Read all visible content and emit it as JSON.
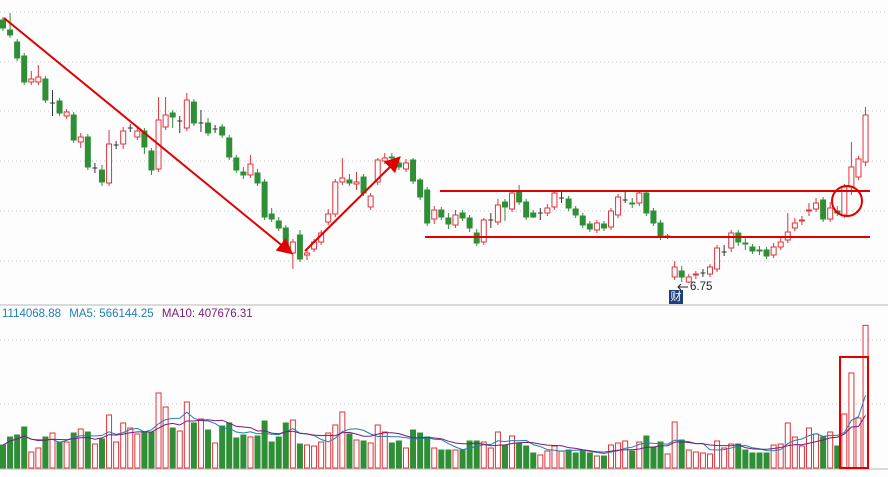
{
  "volume_header": {
    "volume": "1114068.88",
    "ma5": "MA5: 566144.25",
    "ma10": "MA10: 407676.31"
  },
  "low_marker": {
    "label": "6.75",
    "badge": "财"
  },
  "colors": {
    "up": "#e0343c",
    "down": "#2f8f36",
    "doji": "#333333",
    "ma5": "#1f7fb4",
    "ma10": "#7a1a7a",
    "annotation": "#e00000",
    "grid": "#c8c8c8"
  },
  "chart_data": {
    "type": "candlestick",
    "grid": true,
    "candles_ohlc": [
      [
        9.38,
        9.41,
        9.27,
        9.3
      ],
      [
        9.28,
        9.45,
        9.2,
        9.23
      ],
      [
        9.16,
        9.19,
        8.97,
        9.0
      ],
      [
        9.02,
        9.05,
        8.73,
        8.76
      ],
      [
        8.76,
        8.87,
        8.73,
        8.79
      ],
      [
        8.76,
        8.93,
        8.73,
        8.81
      ],
      [
        8.79,
        8.82,
        8.55,
        8.58
      ],
      [
        8.55,
        8.68,
        8.42,
        8.55
      ],
      [
        8.57,
        8.6,
        8.42,
        8.45
      ],
      [
        8.42,
        8.49,
        8.39,
        8.46
      ],
      [
        8.43,
        8.46,
        8.15,
        8.18
      ],
      [
        8.16,
        8.25,
        8.1,
        8.21
      ],
      [
        8.21,
        8.24,
        7.88,
        7.91
      ],
      [
        7.9,
        7.95,
        7.85,
        7.9
      ],
      [
        7.88,
        7.93,
        7.72,
        7.76
      ],
      [
        7.75,
        8.28,
        7.72,
        8.14
      ],
      [
        8.13,
        8.17,
        8.09,
        8.13
      ],
      [
        8.14,
        8.31,
        8.09,
        8.27
      ],
      [
        8.3,
        8.34,
        8.26,
        8.3
      ],
      [
        8.21,
        8.32,
        8.18,
        8.27
      ],
      [
        8.27,
        8.3,
        8.04,
        8.11
      ],
      [
        8.07,
        8.1,
        7.83,
        7.88
      ],
      [
        7.89,
        8.61,
        7.86,
        8.38
      ],
      [
        8.31,
        8.61,
        8.28,
        8.43
      ],
      [
        8.45,
        8.48,
        8.3,
        8.41
      ],
      [
        8.37,
        8.42,
        8.25,
        8.37
      ],
      [
        8.3,
        8.65,
        8.27,
        8.58
      ],
      [
        8.56,
        8.59,
        8.32,
        8.35
      ],
      [
        8.35,
        8.48,
        8.26,
        8.35
      ],
      [
        8.35,
        8.4,
        8.22,
        8.25
      ],
      [
        8.29,
        8.33,
        8.25,
        8.29
      ],
      [
        8.31,
        8.34,
        8.2,
        8.23
      ],
      [
        8.2,
        8.23,
        7.98,
        8.01
      ],
      [
        8.0,
        8.03,
        7.85,
        7.88
      ],
      [
        7.86,
        7.91,
        7.79,
        7.83
      ],
      [
        7.83,
        8.03,
        7.8,
        7.94
      ],
      [
        7.85,
        7.89,
        7.72,
        7.75
      ],
      [
        7.76,
        7.79,
        7.38,
        7.41
      ],
      [
        7.44,
        7.5,
        7.36,
        7.39
      ],
      [
        7.37,
        7.41,
        7.27,
        7.3
      ],
      [
        7.3,
        7.33,
        7.08,
        7.11
      ],
      [
        7.05,
        7.19,
        6.89,
        7.16
      ],
      [
        7.23,
        7.28,
        6.96,
        6.99
      ],
      [
        7.03,
        7.08,
        6.98,
        7.05
      ],
      [
        7.09,
        7.19,
        7.06,
        7.16
      ],
      [
        7.16,
        7.28,
        7.13,
        7.25
      ],
      [
        7.36,
        7.49,
        7.33,
        7.44
      ],
      [
        7.44,
        7.79,
        7.41,
        7.76
      ],
      [
        7.76,
        8.0,
        7.73,
        7.8
      ],
      [
        7.78,
        7.84,
        7.72,
        7.75
      ],
      [
        7.74,
        7.86,
        7.68,
        7.76
      ],
      [
        7.81,
        7.84,
        7.62,
        7.65
      ],
      [
        7.51,
        7.65,
        7.48,
        7.62
      ],
      [
        7.76,
        8.0,
        7.73,
        7.98
      ],
      [
        7.97,
        8.05,
        7.94,
        8.0
      ],
      [
        8.01,
        8.05,
        7.97,
        8.0
      ],
      [
        7.95,
        7.99,
        7.88,
        7.91
      ],
      [
        7.89,
        7.99,
        7.86,
        7.95
      ],
      [
        7.98,
        8.0,
        7.74,
        7.77
      ],
      [
        7.78,
        7.8,
        7.58,
        7.61
      ],
      [
        7.68,
        7.71,
        7.32,
        7.35
      ],
      [
        7.39,
        7.52,
        7.34,
        7.48
      ],
      [
        7.48,
        7.51,
        7.38,
        7.41
      ],
      [
        7.4,
        7.45,
        7.29,
        7.34
      ],
      [
        7.33,
        7.48,
        7.3,
        7.43
      ],
      [
        7.45,
        7.48,
        7.37,
        7.4
      ],
      [
        7.4,
        7.43,
        7.26,
        7.3
      ],
      [
        7.25,
        7.29,
        7.12,
        7.15
      ],
      [
        7.16,
        7.4,
        7.13,
        7.38
      ],
      [
        7.38,
        7.45,
        7.3,
        7.38
      ],
      [
        7.36,
        7.59,
        7.33,
        7.53
      ],
      [
        7.56,
        7.59,
        7.37,
        7.51
      ],
      [
        7.49,
        7.68,
        7.46,
        7.65
      ],
      [
        7.66,
        7.73,
        7.53,
        7.56
      ],
      [
        7.56,
        7.59,
        7.38,
        7.41
      ],
      [
        7.45,
        7.48,
        7.4,
        7.41
      ],
      [
        7.45,
        7.5,
        7.38,
        7.45
      ],
      [
        7.45,
        7.54,
        7.42,
        7.5
      ],
      [
        7.51,
        7.68,
        7.48,
        7.65
      ],
      [
        7.6,
        7.68,
        7.55,
        7.6
      ],
      [
        7.59,
        7.62,
        7.47,
        7.5
      ],
      [
        7.49,
        7.52,
        7.4,
        7.43
      ],
      [
        7.42,
        7.45,
        7.3,
        7.33
      ],
      [
        7.34,
        7.37,
        7.26,
        7.29
      ],
      [
        7.28,
        7.38,
        7.25,
        7.35
      ],
      [
        7.34,
        7.37,
        7.27,
        7.3
      ],
      [
        7.31,
        7.5,
        7.28,
        7.47
      ],
      [
        7.43,
        7.64,
        7.4,
        7.61
      ],
      [
        7.58,
        7.67,
        7.55,
        7.58
      ],
      [
        7.55,
        7.6,
        7.5,
        7.54
      ],
      [
        7.55,
        7.68,
        7.52,
        7.65
      ],
      [
        7.65,
        7.68,
        7.42,
        7.45
      ],
      [
        7.47,
        7.5,
        7.32,
        7.35
      ],
      [
        7.35,
        7.38,
        7.18,
        7.21
      ],
      [
        7.21,
        7.24,
        7.19,
        7.22
      ],
      [
        6.81,
        6.97,
        6.78,
        6.91
      ],
      [
        6.87,
        6.92,
        6.76,
        6.81
      ],
      [
        6.76,
        6.84,
        6.75,
        6.81
      ],
      [
        6.83,
        6.87,
        6.79,
        6.84
      ],
      [
        6.85,
        6.89,
        6.81,
        6.85
      ],
      [
        6.84,
        6.94,
        6.81,
        6.91
      ],
      [
        6.89,
        7.13,
        6.86,
        7.1
      ],
      [
        7.06,
        7.13,
        7.02,
        7.06
      ],
      [
        7.1,
        7.28,
        7.06,
        7.25
      ],
      [
        7.25,
        7.28,
        7.12,
        7.16
      ],
      [
        7.15,
        7.2,
        7.08,
        7.14
      ],
      [
        7.11,
        7.14,
        7.04,
        7.07
      ],
      [
        7.08,
        7.12,
        7.03,
        7.07
      ],
      [
        7.08,
        7.11,
        6.99,
        7.02
      ],
      [
        7.03,
        7.15,
        7.0,
        7.11
      ],
      [
        7.11,
        7.2,
        7.08,
        7.16
      ],
      [
        7.18,
        7.45,
        7.15,
        7.26
      ],
      [
        7.3,
        7.4,
        7.27,
        7.35
      ],
      [
        7.37,
        7.42,
        7.33,
        7.38
      ],
      [
        7.47,
        7.55,
        7.42,
        7.48
      ],
      [
        7.49,
        7.6,
        7.46,
        7.55
      ],
      [
        7.58,
        7.61,
        7.36,
        7.39
      ],
      [
        7.39,
        7.56,
        7.36,
        7.5
      ],
      [
        7.47,
        7.52,
        7.42,
        7.45
      ],
      [
        7.43,
        7.74,
        7.4,
        7.71
      ],
      [
        7.71,
        8.16,
        7.63,
        7.91
      ],
      [
        7.81,
        8.02,
        7.78,
        7.99
      ],
      [
        7.96,
        8.51,
        7.92,
        8.43
      ]
    ],
    "volume": [
      179688,
      242188,
      257813,
      320313,
      125000,
      156250,
      242188,
      273438,
      203125,
      203125,
      273438,
      304688,
      281250,
      187500,
      226563,
      414063,
      203125,
      351563,
      312500,
      265625,
      281250,
      281250,
      585938,
      476563,
      312500,
      289063,
      515625,
      351563,
      382813,
      296875,
      195313,
      328125,
      351563,
      234375,
      257813,
      242188,
      250000,
      367188,
      203125,
      242188,
      351563,
      375000,
      187500,
      179688,
      171875,
      203125,
      273438,
      335938,
      437500,
      265625,
      218750,
      210938,
      195313,
      335938,
      281250,
      195313,
      210938,
      156250,
      296875,
      273438,
      242188,
      156250,
      140625,
      140625,
      140625,
      140625,
      210938,
      210938,
      203125,
      156250,
      281250,
      179688,
      250000,
      195313,
      171875,
      117188,
      101563,
      132813,
      171875,
      132813,
      140625,
      117188,
      140625,
      117188,
      93750,
      93750,
      179688,
      195313,
      210938,
      132813,
      203125,
      250000,
      164063,
      203125,
      109375,
      359375,
      218750,
      140625,
      125000,
      117188,
      109375,
      210938,
      156250,
      187500,
      187500,
      140625,
      117188,
      117188,
      117188,
      179688,
      187500,
      351563,
      242188,
      171875,
      312500,
      265625,
      242188,
      281250,
      171875,
      421875,
      742188,
      390625,
      1114068.88
    ],
    "volume_gridlines": [
      500000,
      1000000
    ],
    "moving_averages": [
      "MA5",
      "MA10"
    ],
    "low_annotation": 6.75
  }
}
